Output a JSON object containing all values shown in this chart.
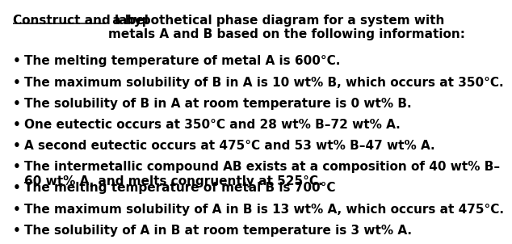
{
  "title_bold_underline": "Construct and label",
  "title_rest": " a hypothetical phase diagram for a system with\nmetals A and B based on the following information:",
  "bullets": [
    "The melting temperature of metal A is 600°C.",
    "The maximum solubility of B in A is 10 wt% B, which occurs at 350°C.",
    "The solubility of B in A at room temperature is 0 wt% B.",
    "One eutectic occurs at 350°C and 28 wt% B–72 wt% A.",
    "A second eutectic occurs at 475°C and 53 wt% B–47 wt% A.",
    "The intermetallic compound AB exists at a composition of 40 wt% B–\n60 wt% A, and melts congruently at 525°C.",
    "The melting temperature of metal B is 700°C",
    "The maximum solubility of A in B is 13 wt% A, which occurs at 475°C.",
    "The solubility of A in B at room temperature is 3 wt% A."
  ],
  "bg_color": "#ffffff",
  "text_color": "#000000",
  "font_size": 11.0,
  "title_font_size": 11.0
}
